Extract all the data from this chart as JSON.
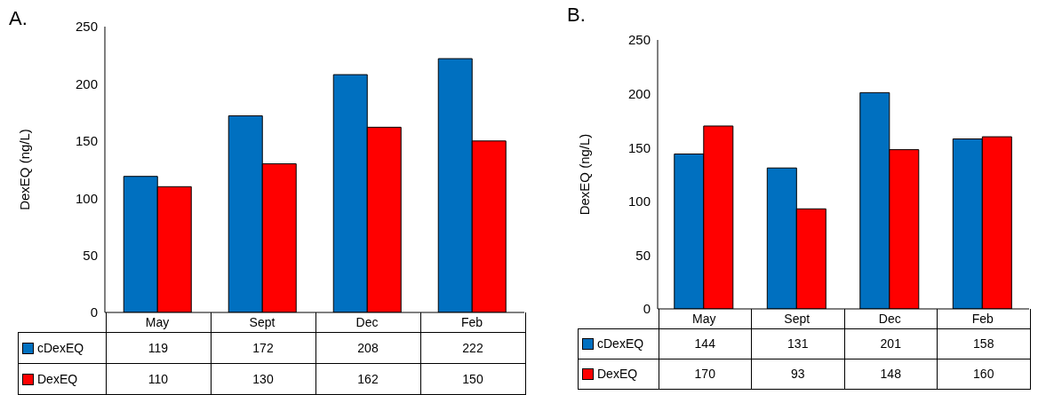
{
  "chart_data": [
    {
      "type": "bar",
      "title": "A.",
      "ylabel": "DexEQ (ng/L)",
      "categories": [
        "May",
        "Sept",
        "Dec",
        "Feb"
      ],
      "series": [
        {
          "name": "cDexEQ",
          "color": "#0070c0",
          "values": [
            119,
            172,
            208,
            222
          ]
        },
        {
          "name": "DexEQ",
          "color": "#ff0000",
          "values": [
            110,
            130,
            162,
            150
          ]
        }
      ],
      "ylim": [
        0,
        250
      ],
      "yticks": [
        0,
        50,
        100,
        150,
        200,
        250
      ],
      "data_labels": true,
      "legend": "bottom left"
    },
    {
      "type": "bar",
      "title": "B.",
      "ylabel": "DexEQ (ng/L)",
      "categories": [
        "May",
        "Sept",
        "Dec",
        "Feb"
      ],
      "series": [
        {
          "name": "cDexEQ",
          "color": "#0070c0",
          "values": [
            144,
            131,
            201,
            158
          ]
        },
        {
          "name": "DexEQ",
          "color": "#ff0000",
          "values": [
            170,
            93,
            148,
            160
          ]
        }
      ],
      "ylim": [
        0,
        250
      ],
      "yticks": [
        0,
        50,
        100,
        150,
        200,
        250
      ],
      "data_labels": true,
      "legend": "bottom left"
    }
  ]
}
